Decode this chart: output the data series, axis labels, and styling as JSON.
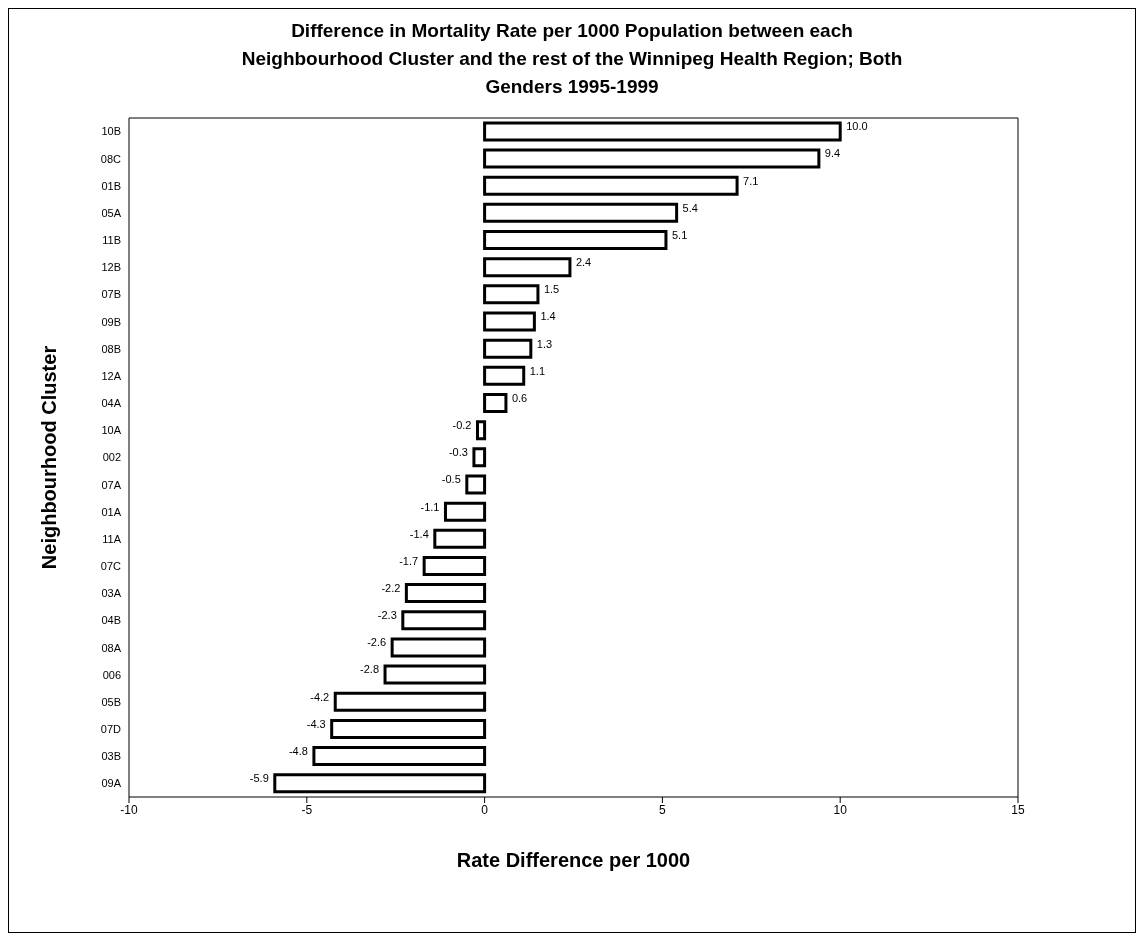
{
  "chart_data": {
    "type": "bar",
    "orientation": "horizontal",
    "title": "Difference in Mortality Rate per 1000 Population between each Neighbourhood Cluster and the rest of the Winnipeg Health Region; Both Genders 1995-1999",
    "xlabel": "Rate Difference per 1000",
    "ylabel": "Neighbourhood Cluster",
    "categories": [
      "10B",
      "08C",
      "01B",
      "05A",
      "11B",
      "12B",
      "07B",
      "09B",
      "08B",
      "12A",
      "04A",
      "10A",
      "002",
      "07A",
      "01A",
      "11A",
      "07C",
      "03A",
      "04B",
      "08A",
      "006",
      "05B",
      "07D",
      "03B",
      "09A"
    ],
    "values": [
      10.0,
      9.4,
      7.1,
      5.4,
      5.1,
      2.4,
      1.5,
      1.4,
      1.3,
      1.1,
      0.6,
      -0.2,
      -0.3,
      -0.5,
      -1.1,
      -1.4,
      -1.7,
      -2.2,
      -2.3,
      -2.6,
      -2.8,
      -4.2,
      -4.3,
      -4.8,
      -5.9
    ],
    "value_labels": [
      "10.0",
      "9.4",
      "7.1",
      "5.4",
      "5.1",
      "2.4",
      "1.5",
      "1.4",
      "1.3",
      "1.1",
      "0.6",
      "-0.2",
      "-0.3",
      "-0.5",
      "-1.1",
      "-1.4",
      "-1.7",
      "-2.2",
      "-2.3",
      "-2.6",
      "-2.8",
      "-4.2",
      "-4.3",
      "-4.8",
      "-5.9"
    ],
    "color": "#ffffff",
    "xlim": [
      -10,
      15
    ],
    "xticks": [
      -10,
      -5,
      0,
      5,
      10,
      15
    ],
    "grid": false
  }
}
